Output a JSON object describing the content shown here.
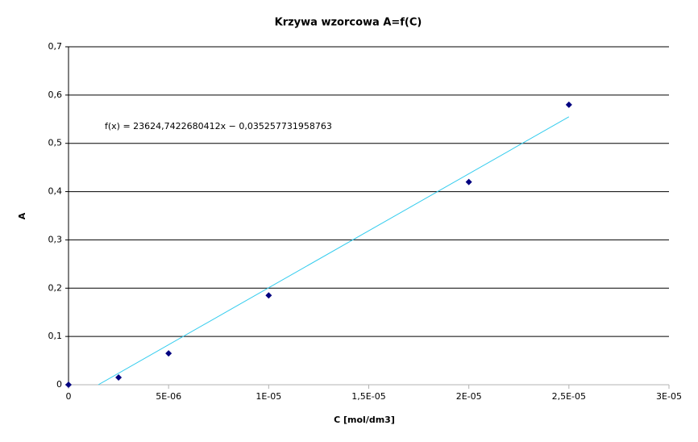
{
  "chart_data": {
    "type": "scatter",
    "title": "Krzywa wzorcowa A=f(C)",
    "x_label": "C [mol/dm3]",
    "y_label": "A",
    "x": [
      0,
      2.5e-06,
      5e-06,
      1e-05,
      2e-05,
      2.5e-05
    ],
    "values": [
      0,
      0.015,
      0.065,
      0.185,
      0.42,
      0.58
    ],
    "color": "#000080",
    "trendline": {
      "label": "f(x) = 23624,7422680412x − 0,035257731958763",
      "color": "#33ccee",
      "x": [
        1.49e-06,
        2.5e-05
      ],
      "values": [
        0,
        0.555
      ]
    },
    "xlim": [
      0,
      3e-05
    ],
    "xticks": [
      0,
      {
        "value": 5e-06,
        "label": "5E-06"
      },
      {
        "value": 1e-05,
        "label": "1E-05"
      },
      {
        "value": 1.5e-05,
        "label": "1,5E-05"
      },
      {
        "value": 2e-05,
        "label": "2E-05"
      },
      {
        "value": 2.5e-05,
        "label": "2,5E-05"
      },
      {
        "value": 3e-05,
        "label": "3E-05"
      }
    ],
    "ylim": [
      0,
      0.7
    ],
    "yticks": [
      0,
      {
        "value": 0.1,
        "label": "0,1"
      },
      {
        "value": 0.2,
        "label": "0,2"
      },
      {
        "value": 0.3,
        "label": "0,3"
      },
      {
        "value": 0.4,
        "label": "0,4"
      },
      {
        "value": 0.5,
        "label": "0,5"
      },
      {
        "value": 0.6,
        "label": "0,6"
      },
      {
        "value": 0.7,
        "label": "0,7"
      }
    ],
    "grid": true
  }
}
